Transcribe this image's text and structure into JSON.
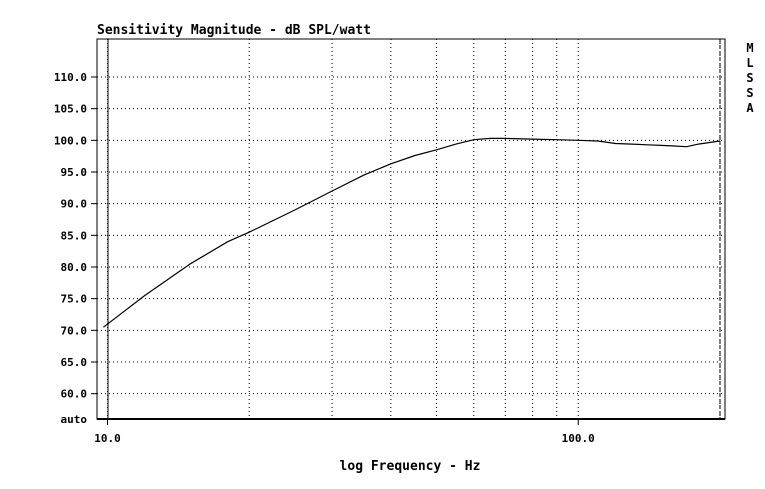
{
  "chart_data": {
    "type": "line",
    "title": "Sensitivity Magnitude - dB SPL/watt",
    "xlabel": "log Frequency - Hz",
    "ylabel": "",
    "x_scale": "log",
    "xlim": [
      9.5,
      205
    ],
    "ylim": [
      56,
      116
    ],
    "y_ticks": [
      {
        "value": 110,
        "label": "110.0"
      },
      {
        "value": 105,
        "label": "105.0"
      },
      {
        "value": 100,
        "label": "100.0"
      },
      {
        "value": 95,
        "label": "95.0"
      },
      {
        "value": 90,
        "label": "90.0"
      },
      {
        "value": 85,
        "label": "85.0"
      },
      {
        "value": 80,
        "label": "80.0"
      },
      {
        "value": 75,
        "label": "75.0"
      },
      {
        "value": 70,
        "label": "70.0"
      },
      {
        "value": 65,
        "label": "65.0"
      },
      {
        "value": 60,
        "label": "60.0"
      }
    ],
    "y_bottom_label": "auto",
    "x_tick_labels": [
      {
        "value": 10,
        "label": "10.0"
      },
      {
        "value": 100,
        "label": "100.0"
      }
    ],
    "x_gridlines": [
      10,
      20,
      30,
      40,
      50,
      60,
      70,
      80,
      90,
      100,
      200
    ],
    "grid": true,
    "side_label": [
      "M",
      "L",
      "S",
      "S",
      "A"
    ],
    "series": [
      {
        "x": [
          9.8,
          12,
          15,
          18,
          20,
          25,
          30,
          35,
          40,
          45,
          50,
          55,
          60,
          65,
          70,
          80,
          90,
          100,
          110,
          120,
          130,
          140,
          150,
          160,
          170,
          180,
          200
        ],
        "y": [
          70.5,
          75.5,
          80.5,
          84.0,
          85.5,
          89.0,
          92.0,
          94.5,
          96.3,
          97.6,
          98.5,
          99.4,
          100.1,
          100.3,
          100.3,
          100.2,
          100.1,
          100.0,
          99.9,
          99.5,
          99.4,
          99.3,
          99.2,
          99.1,
          99.0,
          99.4,
          99.9
        ]
      }
    ]
  }
}
